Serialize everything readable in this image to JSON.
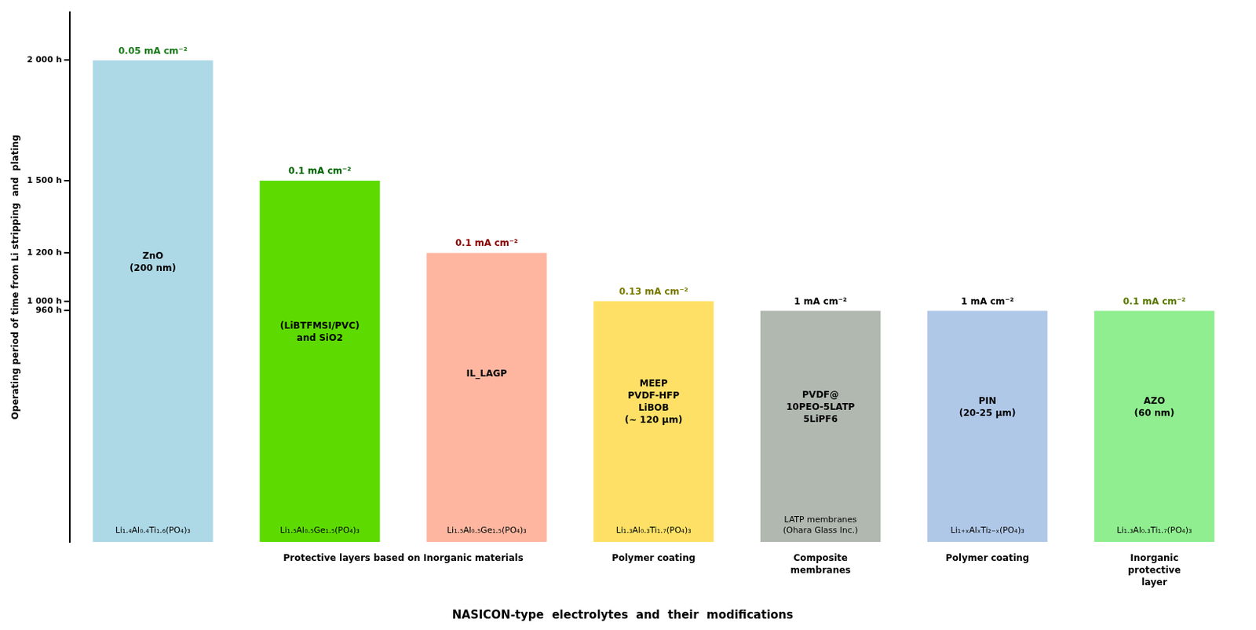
{
  "chart_data": {
    "type": "bar",
    "title": "NASICON-type  electrolytes  and  their  modifications",
    "ylabel": "Operating period of time from Li stripping  and  plating",
    "categories": [
      null,
      null,
      null,
      null,
      null,
      null,
      null
    ],
    "values": [
      2000,
      1500,
      1200,
      1000,
      960,
      960,
      960
    ],
    "colors": [
      "#add8e6",
      "#5ddb00",
      "#ffb6a0",
      "#ffe066",
      "#b0b8b0",
      "#b0c8e8",
      "#90ee90"
    ],
    "ylim": [
      0,
      2200
    ],
    "yticks": [
      {
        "value": 960,
        "label": "960 h"
      },
      {
        "value": 1000,
        "label": "1 000 h"
      },
      {
        "value": 1200,
        "label": "1 200 h"
      },
      {
        "value": 1500,
        "label": "1 500 h"
      },
      {
        "value": 2000,
        "label": "2 000 h"
      }
    ],
    "grid": false,
    "tick_labels": "y",
    "top_labels": [
      "0.05 mA cm⁻²",
      "0.1 mA cm⁻²",
      "0.1 mA cm⁻²",
      "0.13 mA cm⁻²",
      "1 mA cm⁻²",
      "1 mA cm⁻²",
      "0.1 mA cm⁻²"
    ],
    "top_label_colors": [
      "#1a7a1a",
      "#006400",
      "#8B0000",
      "#7a7a00",
      "#000000",
      "#000000",
      "#5a7a00"
    ],
    "inner_labels": [
      "ZnO\n(200 nm)",
      "(LiBTFMSI/PVC)\nand SiO2",
      "IL_LAGP",
      "MEEP\nPVDF-HFP\nLiBOB\n(∼ 120 μm)",
      "PVDF@\n10PEO-5LATP\n5LiPF6",
      "PIN\n(20-25 μm)",
      "AZO\n(60 nm)"
    ],
    "formulas": [
      "Li₁.₄Al₀.₄Ti₁.₆(PO₄)₃",
      "Li₁.₅Al₀.₅Ge₁.₅(PO₄)₃",
      "Li₁.₅Al₀.₅Ge₁.₅(PO₄)₃",
      "Li₁.₃Al₀.₃Ti₁.₇(PO₄)₃",
      "LATP membranes\n(Ohara Glass Inc.)",
      "Li₁₊ₓAlₓTi₂₋ₓ(PO₄)₃",
      "Li₁.₃Al₀.₃Ti₁.₇(PO₄)₃"
    ],
    "group_labels": [
      "Protective layers based on Inorganic materials",
      "Polymer coating",
      "Composite\nmembranes",
      "Polymer coating",
      "Inorganic\nprotective\nlayer"
    ]
  }
}
